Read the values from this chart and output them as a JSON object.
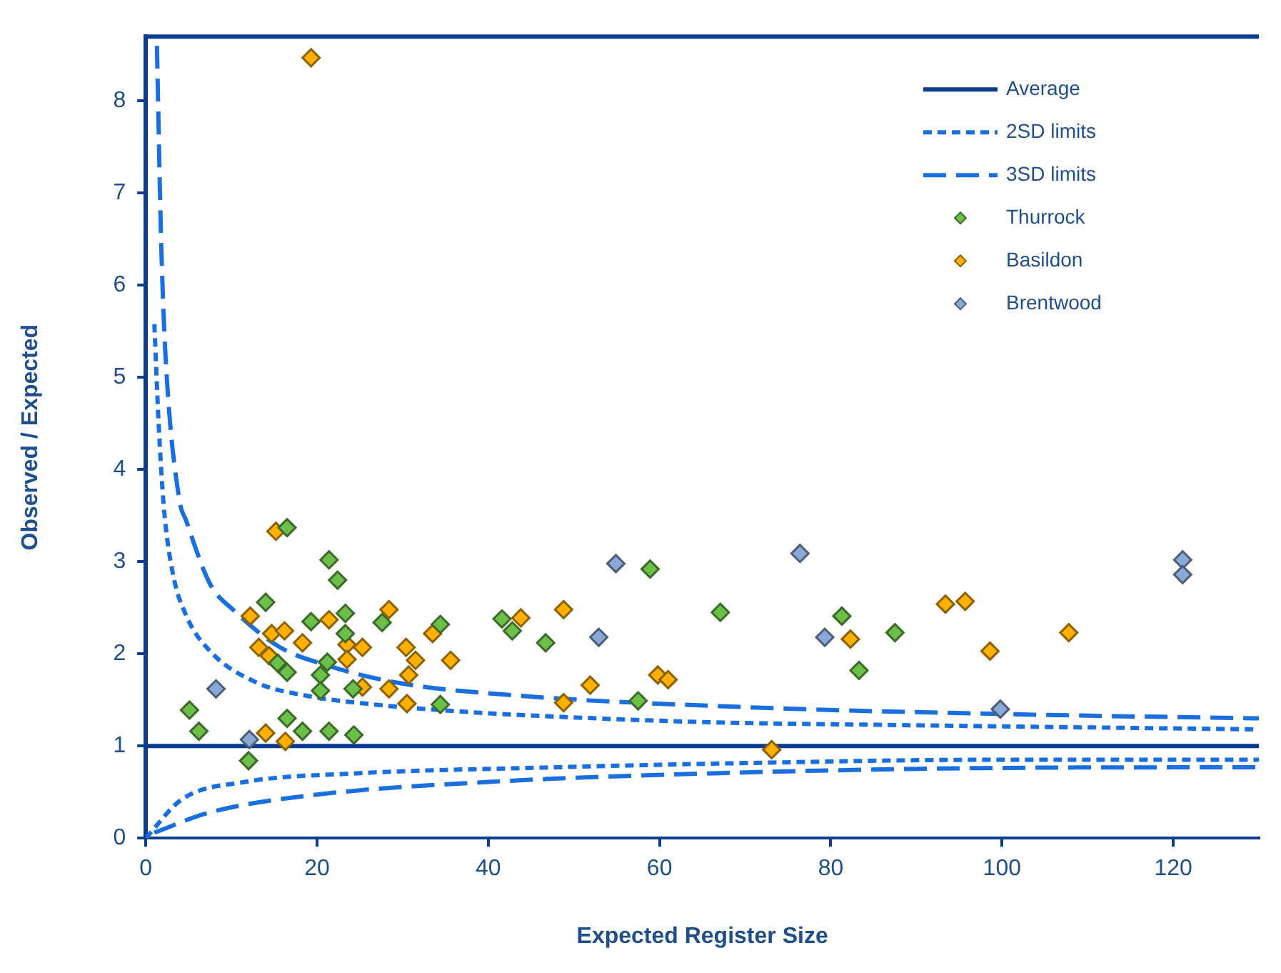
{
  "chart_data": {
    "type": "scatter",
    "xlabel": "Expected Register Size",
    "ylabel": "Observed / Expected",
    "xlim": [
      0,
      130
    ],
    "ylim": [
      0,
      8.7
    ],
    "xticks": [
      0,
      20,
      40,
      60,
      80,
      100,
      120
    ],
    "yticks": [
      0,
      1,
      2,
      3,
      4,
      5,
      6,
      7,
      8
    ],
    "grid": false,
    "legend": "top right",
    "series": [
      {
        "name": "Average",
        "type": "line",
        "color": "#0a3d91",
        "line_style": "solid",
        "marker": "none",
        "x": [
          0,
          130
        ],
        "values": [
          1,
          1
        ]
      },
      {
        "name": "2SD limits",
        "type": "line",
        "color": "#1a6fe0",
        "line_style": "dashed",
        "marker": "none",
        "x": [
          1,
          1.5,
          2.1,
          3.1,
          4.7,
          7.5,
          12.9,
          18.5,
          26.7,
          37.5,
          43,
          65,
          85.5,
          130
        ],
        "values": [
          5.58,
          4.5,
          3.6,
          2.9,
          2.42,
          2.03,
          1.69,
          1.55,
          1.45,
          1.37,
          1.34,
          1.26,
          1.23,
          1.18
        ]
      },
      {
        "name": "3SD limits",
        "type": "line",
        "color": "#1a6fe0",
        "line_style": "dashed",
        "marker": "none",
        "x": [
          1.3,
          1.8,
          2.3,
          3.9,
          4.7,
          7.5,
          10.3,
          15.7,
          21,
          29.2,
          43,
          70.5,
          103.8,
          130
        ],
        "values": [
          8.6,
          6.45,
          5.24,
          3.68,
          3.45,
          2.76,
          2.47,
          2.07,
          1.88,
          1.69,
          1.55,
          1.42,
          1.34,
          1.3
        ]
      },
      {
        "type": "line",
        "color": "#1a6fe0",
        "line_style": "dashed",
        "marker": "none",
        "x": [
          0,
          4.2,
          11.6,
          23.9,
          48.4,
          73,
          97.5,
          130
        ],
        "values": [
          0,
          0.42,
          0.61,
          0.7,
          0.77,
          0.82,
          0.85,
          0.85
        ]
      },
      {
        "type": "line",
        "color": "#1a6fe0",
        "line_style": "dashed",
        "marker": "none",
        "x": [
          1,
          7.5,
          19.8,
          40,
          64.8,
          97.5,
          130
        ],
        "values": [
          0.06,
          0.28,
          0.47,
          0.61,
          0.7,
          0.76,
          0.77
        ]
      },
      {
        "name": "Thurrock",
        "color": "#6cc04a",
        "marker": "diamond",
        "x": [
          5.1,
          6.2,
          12,
          14,
          15.4,
          16.5,
          16.5,
          16.5,
          18.3,
          19.3,
          20.4,
          20.4,
          21.4,
          22.4,
          21.2,
          21.4,
          23.3,
          23.3,
          24.2,
          24.3,
          27.6,
          34.4,
          34.4,
          41.6,
          42.8,
          46.7,
          58.9,
          57.5,
          67.1,
          81.3,
          83.3,
          87.5
        ],
        "values": [
          1.39,
          1.16,
          0.84,
          2.56,
          1.9,
          3.37,
          1.8,
          1.3,
          1.16,
          2.35,
          1.77,
          1.6,
          3.02,
          2.8,
          1.91,
          1.16,
          2.44,
          2.22,
          1.62,
          1.12,
          2.34,
          2.32,
          1.45,
          2.38,
          2.25,
          2.12,
          2.92,
          1.49,
          2.45,
          2.41,
          1.82,
          2.23
        ]
      },
      {
        "name": "Basildon",
        "color": "#ffb000",
        "marker": "diamond",
        "x": [
          19.3,
          15.2,
          12.2,
          14.7,
          16.2,
          18.3,
          21.4,
          28.4,
          23.5,
          25.3,
          23.5,
          13.2,
          14.4,
          30.4,
          31.5,
          30.7,
          28.4,
          25.3,
          30.5,
          33.5,
          35.6,
          14,
          16.3,
          43.8,
          48.8,
          51.9,
          48.8,
          59.8,
          61,
          73.1,
          82.3,
          93.4,
          95.7,
          98.6,
          107.8
        ],
        "values": [
          8.47,
          3.33,
          2.41,
          2.22,
          2.25,
          2.12,
          2.37,
          2.48,
          2.1,
          2.07,
          1.94,
          2.07,
          1.98,
          2.07,
          1.93,
          1.77,
          1.62,
          1.64,
          1.46,
          2.22,
          1.93,
          1.14,
          1.05,
          2.39,
          2.48,
          1.66,
          1.47,
          1.77,
          1.72,
          0.96,
          2.16,
          2.54,
          2.57,
          2.03,
          2.23
        ]
      },
      {
        "name": "Brentwood",
        "color": "#8aa9d8",
        "marker": "diamond",
        "x": [
          8.2,
          12.1,
          54.9,
          52.9,
          76.4,
          79.3,
          99.8,
          121.1,
          121.1
        ],
        "values": [
          1.62,
          1.07,
          2.98,
          2.18,
          3.09,
          2.18,
          1.4,
          3.02,
          2.86
        ]
      }
    ]
  }
}
